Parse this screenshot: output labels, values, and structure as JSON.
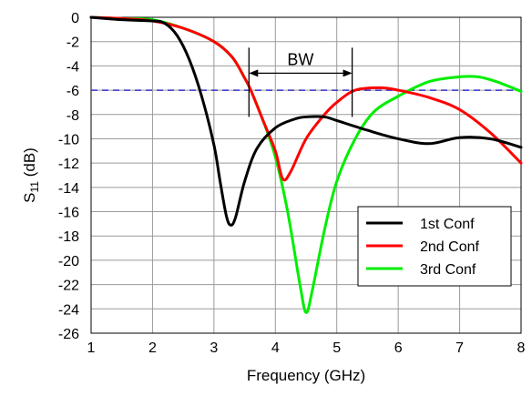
{
  "chart_data": {
    "type": "line",
    "xlabel": "Frequency (GHz)",
    "ylabel": {
      "main": "S",
      "sub": "11",
      "unit": " (dB)"
    },
    "xlim": [
      1,
      8
    ],
    "ylim": [
      -26,
      0
    ],
    "xticks": [
      1,
      2,
      3,
      4,
      5,
      6,
      7,
      8
    ],
    "yticks": [
      0,
      -2,
      -4,
      -6,
      -8,
      -10,
      -12,
      -14,
      -16,
      -18,
      -20,
      -22,
      -24,
      -26
    ],
    "grid": true,
    "legend_position": "bottom-right",
    "reference_line": {
      "y": -6,
      "color": "#3333cc",
      "style": "dashed"
    },
    "annotation": {
      "text": "BW",
      "x_start": 3.57,
      "x_end": 5.25
    },
    "series": [
      {
        "name": "1st Conf",
        "color": "#000000",
        "points": [
          [
            1,
            0
          ],
          [
            1.5,
            -0.2
          ],
          [
            2,
            -0.3
          ],
          [
            2.2,
            -0.5
          ],
          [
            2.4,
            -1.5
          ],
          [
            2.6,
            -3.5
          ],
          [
            2.8,
            -6.5
          ],
          [
            3.0,
            -10.5
          ],
          [
            3.1,
            -13.5
          ],
          [
            3.2,
            -16.3
          ],
          [
            3.27,
            -17.1
          ],
          [
            3.35,
            -16.5
          ],
          [
            3.5,
            -13.5
          ],
          [
            3.7,
            -10.8
          ],
          [
            4.0,
            -9.1
          ],
          [
            4.3,
            -8.4
          ],
          [
            4.5,
            -8.2
          ],
          [
            4.8,
            -8.2
          ],
          [
            5.0,
            -8.5
          ],
          [
            5.5,
            -9.3
          ],
          [
            6.0,
            -10.0
          ],
          [
            6.5,
            -10.4
          ],
          [
            7.0,
            -9.9
          ],
          [
            7.5,
            -10.0
          ],
          [
            8.0,
            -10.7
          ]
        ]
      },
      {
        "name": "2nd Conf",
        "color": "#ff0000",
        "points": [
          [
            1,
            0
          ],
          [
            1.5,
            -0.1
          ],
          [
            2,
            -0.3
          ],
          [
            2.5,
            -0.9
          ],
          [
            3.0,
            -2.0
          ],
          [
            3.3,
            -3.3
          ],
          [
            3.5,
            -5.0
          ],
          [
            3.6,
            -6.0
          ],
          [
            3.8,
            -8.5
          ],
          [
            4.0,
            -11.0
          ],
          [
            4.12,
            -13.3
          ],
          [
            4.25,
            -12.7
          ],
          [
            4.5,
            -10.0
          ],
          [
            4.8,
            -8.0
          ],
          [
            5.0,
            -7.0
          ],
          [
            5.3,
            -6.0
          ],
          [
            5.7,
            -5.8
          ],
          [
            6.0,
            -6.0
          ],
          [
            6.5,
            -6.6
          ],
          [
            7.0,
            -7.6
          ],
          [
            7.5,
            -9.5
          ],
          [
            8.0,
            -12.0
          ]
        ]
      },
      {
        "name": "3rd Conf",
        "color": "#00ee00",
        "points": [
          [
            1,
            0
          ],
          [
            1.5,
            -0.1
          ],
          [
            2,
            -0.2
          ],
          [
            2.5,
            -0.9
          ],
          [
            3.0,
            -2.0
          ],
          [
            3.3,
            -3.3
          ],
          [
            3.5,
            -5.0
          ],
          [
            3.6,
            -6.0
          ],
          [
            3.8,
            -8.5
          ],
          [
            4.0,
            -11.5
          ],
          [
            4.2,
            -16.0
          ],
          [
            4.4,
            -22.0
          ],
          [
            4.5,
            -24.3
          ],
          [
            4.6,
            -22.5
          ],
          [
            4.8,
            -17.5
          ],
          [
            5.0,
            -13.5
          ],
          [
            5.3,
            -10.0
          ],
          [
            5.6,
            -7.8
          ],
          [
            6.0,
            -6.5
          ],
          [
            6.5,
            -5.3
          ],
          [
            7.0,
            -4.9
          ],
          [
            7.3,
            -4.9
          ],
          [
            7.6,
            -5.3
          ],
          [
            8.0,
            -6.1
          ]
        ]
      }
    ]
  }
}
